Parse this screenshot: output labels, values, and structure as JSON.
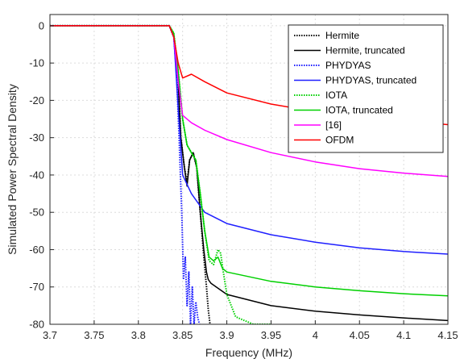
{
  "chart_data": {
    "type": "line",
    "title": "",
    "xlabel": "Frequency (MHz)",
    "ylabel": "Simulated Power Spectral Density",
    "xlim": [
      3.7,
      4.15
    ],
    "ylim": [
      -80,
      3
    ],
    "xticks": [
      3.7,
      3.75,
      3.8,
      3.85,
      3.9,
      3.95,
      4.0,
      4.05,
      4.1,
      4.15
    ],
    "xtick_labels": [
      "3.7",
      "3.75",
      "3.8",
      "3.85",
      "3.9",
      "3.95",
      "4",
      "4.05",
      "4.1",
      "4.15"
    ],
    "yticks": [
      0,
      -10,
      -20,
      -30,
      -40,
      -50,
      -60,
      -70,
      -80
    ],
    "ytick_labels": [
      "0",
      "-10",
      "-20",
      "-30",
      "-40",
      "-50",
      "-60",
      "-70",
      "-80"
    ],
    "grid": true,
    "legend_position": "top-right",
    "series": [
      {
        "name": "Hermite",
        "color": "#000000",
        "style": "dotted",
        "x": [
          3.7,
          3.8,
          3.835,
          3.84,
          3.845,
          3.848,
          3.852,
          3.855,
          3.858,
          3.862,
          3.866,
          3.87,
          3.874,
          3.877,
          3.879,
          3.881
        ],
        "y": [
          0,
          0,
          0,
          -3,
          -15,
          -30,
          -38,
          -42,
          -36,
          -34,
          -38,
          -50,
          -62,
          -70,
          -76,
          -80
        ]
      },
      {
        "name": "Hermite, truncated",
        "color": "#000000",
        "style": "solid",
        "x": [
          3.7,
          3.8,
          3.835,
          3.84,
          3.845,
          3.848,
          3.852,
          3.855,
          3.858,
          3.862,
          3.866,
          3.87,
          3.874,
          3.877,
          3.879,
          3.882,
          3.9,
          3.95,
          4.0,
          4.05,
          4.1,
          4.15
        ],
        "y": [
          0,
          0,
          0,
          -3,
          -15,
          -30,
          -38,
          -43,
          -36,
          -34,
          -38,
          -50,
          -60,
          -66,
          -68,
          -69,
          -72,
          -75,
          -76.5,
          -77.5,
          -78.3,
          -79
        ]
      },
      {
        "name": "PHYDYAS",
        "color": "#1f1fff",
        "style": "dotted",
        "x": [
          3.7,
          3.8,
          3.835,
          3.84,
          3.843,
          3.846,
          3.849,
          3.851,
          3.853,
          3.855,
          3.857,
          3.859,
          3.861,
          3.863,
          3.865,
          3.867,
          3.869
        ],
        "y": [
          0,
          0,
          0,
          -3,
          -12,
          -30,
          -50,
          -68,
          -62,
          -75,
          -66,
          -80,
          -70,
          -80,
          -74,
          -78,
          -80
        ]
      },
      {
        "name": "PHYDYAS, truncated",
        "color": "#1f1fff",
        "style": "solid",
        "x": [
          3.7,
          3.8,
          3.835,
          3.84,
          3.845,
          3.85,
          3.86,
          3.875,
          3.9,
          3.95,
          4.0,
          4.05,
          4.1,
          4.15
        ],
        "y": [
          0,
          0,
          0,
          -3,
          -22,
          -40,
          -45,
          -50,
          -53,
          -56,
          -58,
          -59.5,
          -60.5,
          -61.2
        ]
      },
      {
        "name": "IOTA",
        "color": "#00d000",
        "style": "dotted",
        "x": [
          3.7,
          3.8,
          3.835,
          3.84,
          3.845,
          3.85,
          3.855,
          3.86,
          3.865,
          3.87,
          3.875,
          3.88,
          3.885,
          3.89,
          3.893,
          3.896,
          3.9,
          3.905,
          3.91,
          3.92,
          3.93,
          3.94,
          3.95
        ],
        "y": [
          0,
          0,
          0,
          -2,
          -12,
          -25,
          -32,
          -34,
          -36,
          -45,
          -55,
          -63,
          -64,
          -60,
          -61,
          -66,
          -72,
          -75,
          -78,
          -79,
          -80,
          -80,
          -80
        ]
      },
      {
        "name": "IOTA, truncated",
        "color": "#00d000",
        "style": "solid",
        "x": [
          3.7,
          3.8,
          3.835,
          3.84,
          3.845,
          3.85,
          3.855,
          3.86,
          3.865,
          3.87,
          3.875,
          3.88,
          3.885,
          3.89,
          3.895,
          3.9,
          3.95,
          4.0,
          4.05,
          4.1,
          4.15
        ],
        "y": [
          0,
          0,
          0,
          -2,
          -12,
          -25,
          -32,
          -34,
          -36,
          -45,
          -55,
          -62,
          -63,
          -62,
          -65,
          -66,
          -68.5,
          -70,
          -71,
          -71.8,
          -72.4
        ]
      },
      {
        "name": "[16]",
        "color": "#ff00ff",
        "style": "solid",
        "x": [
          3.7,
          3.8,
          3.835,
          3.84,
          3.845,
          3.85,
          3.86,
          3.875,
          3.9,
          3.95,
          4.0,
          4.05,
          4.1,
          4.15
        ],
        "y": [
          0,
          0,
          0,
          -3,
          -15,
          -24,
          -26,
          -28,
          -30.5,
          -34,
          -36.5,
          -38.3,
          -39.5,
          -40.4
        ]
      },
      {
        "name": "OFDM",
        "color": "#ff0000",
        "style": "solid",
        "x": [
          3.7,
          3.8,
          3.835,
          3.84,
          3.845,
          3.85,
          3.86,
          3.875,
          3.9,
          3.95,
          4.0,
          4.05,
          4.1,
          4.15
        ],
        "y": [
          0,
          0,
          0,
          -3,
          -10,
          -14,
          -13,
          -15,
          -18,
          -21,
          -23,
          -24.5,
          -25.5,
          -26.5
        ]
      }
    ]
  }
}
